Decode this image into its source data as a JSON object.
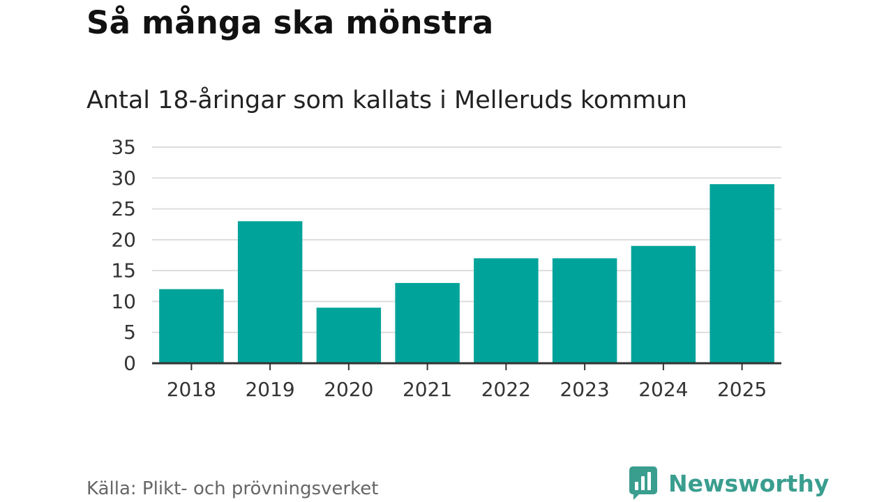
{
  "header": {
    "title": "Så många ska mönstra",
    "subtitle": "Antal 18-åringar som kallats i Melleruds kommun"
  },
  "footer": {
    "source": "Källa: Plikt- och prövningsverket",
    "brand": "Newsworthy",
    "brand_icon": "newsworthy-logo-icon"
  },
  "colors": {
    "bar": "#00a39a",
    "brand": "#3a9e8f",
    "grid": "#dddddd",
    "axis": "#333333"
  },
  "chart_data": {
    "type": "bar",
    "title": "Antal 18-åringar som kallats i Melleruds kommun",
    "xlabel": "",
    "ylabel": "",
    "categories": [
      "2018",
      "2019",
      "2020",
      "2021",
      "2022",
      "2023",
      "2024",
      "2025"
    ],
    "values": [
      12,
      23,
      9,
      13,
      17,
      17,
      19,
      29
    ],
    "ylim": [
      0,
      35
    ],
    "yticks": [
      0,
      5,
      10,
      15,
      20,
      25,
      30,
      35
    ],
    "grid": true,
    "legend": "none"
  }
}
